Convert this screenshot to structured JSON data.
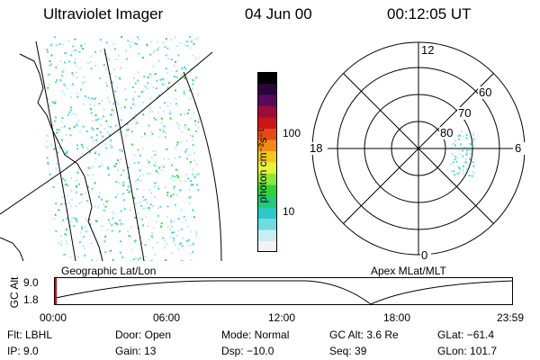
{
  "header": {
    "instrument": "Ultraviolet Imager",
    "date": "04 Jun 00",
    "time": "00:12:05 UT"
  },
  "colorbar": {
    "unit_label": "photon cm⁻²s⁻¹",
    "ticks": [
      "100",
      "10"
    ]
  },
  "polar": {
    "clock_labels": [
      "12",
      "18",
      "6",
      "0"
    ],
    "lat_labels": [
      "60",
      "70",
      "80"
    ]
  },
  "coord_labels": {
    "left": "Geographic Lat/Lon",
    "right": "Apex MLat/MLT"
  },
  "altitude_plot": {
    "axis_label": "GC Alt",
    "y_ticks": [
      "9.0",
      "1.8"
    ],
    "time_ticks": [
      "00:00",
      "06:00",
      "12:00",
      "18:00",
      "23:59"
    ]
  },
  "info": {
    "row1": [
      "Flt: LBHL",
      "Door: Open",
      "Mode: Normal",
      "GC Alt: 3.6 Re",
      "GLat: −61.4"
    ],
    "row2": [
      "IP: 9.0",
      "Gain: 13",
      "Dsp: −10.0",
      "Seq: 39",
      "GLon: 101.7"
    ]
  },
  "colors": {
    "colorbar": [
      "#f2f2f2",
      "#c8eef2",
      "#6fdbe0",
      "#2ec8c8",
      "#25c97a",
      "#36d13a",
      "#8ee83a",
      "#e6f23a",
      "#f2c81e",
      "#f08c14",
      "#e64a14",
      "#cc1414",
      "#9a0e3c",
      "#5a0a5a",
      "#28083a",
      "#000000"
    ],
    "aurora_cyan": "#55d6d0",
    "aurora_green": "#3cd23c",
    "marker_red": "#dd0000"
  }
}
